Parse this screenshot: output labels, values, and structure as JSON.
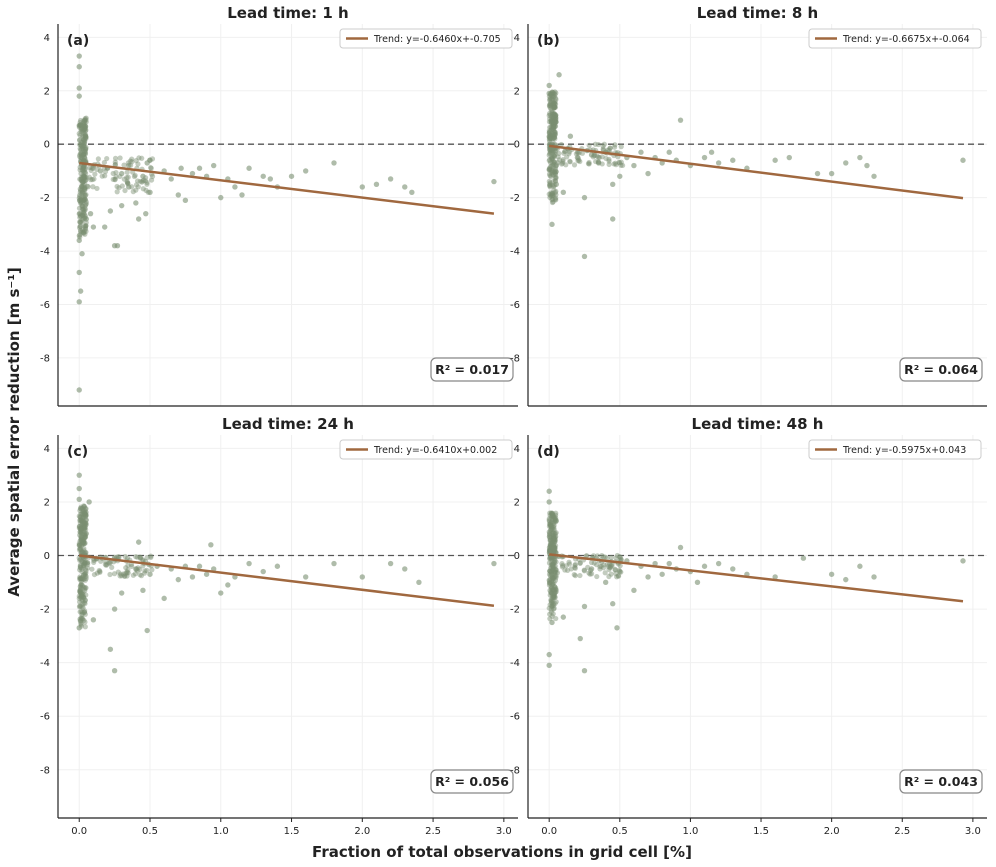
{
  "figure": {
    "ylabel": "Average spatial error reduction [m s⁻¹]",
    "xlabel": "Fraction of total observations in grid cell [%]"
  },
  "colors": {
    "points": "#7a8f72",
    "trend": "#a0683f",
    "zero_line": "#555555"
  },
  "chart_data": [
    {
      "type": "scatter",
      "title": "Lead time: 1 h",
      "letter": "(a)",
      "legend": "Trend: y=-0.6460x+-0.705",
      "r2": "R² = 0.017",
      "slope": -0.646,
      "intercept": -0.705,
      "xlim": [
        -0.15,
        3.1
      ],
      "ylim": [
        -9.8,
        4.5
      ],
      "xticks": [
        0.0,
        0.5,
        1.0,
        1.5,
        2.0,
        2.5,
        3.0
      ],
      "xtick_labels": [
        "0.0",
        "0.5",
        "1.0",
        "1.5",
        "2.0",
        "2.5",
        "3.0"
      ],
      "yticks": [
        4,
        2,
        0,
        -2,
        -4,
        -6,
        -8
      ],
      "ytick_labels": [
        "4",
        "2",
        "0",
        "-2",
        "-4",
        "-6",
        "-8"
      ],
      "points": [
        [
          0,
          3.3
        ],
        [
          0,
          2.9
        ],
        [
          0,
          2.1
        ],
        [
          0,
          1.8
        ],
        [
          0,
          -9.2
        ],
        [
          0,
          -5.9
        ],
        [
          0.01,
          -5.5
        ],
        [
          0,
          -4.8
        ],
        [
          0.02,
          -4.1
        ],
        [
          0,
          -3.6
        ],
        [
          0.03,
          -3.3
        ],
        [
          0.05,
          -2.8
        ],
        [
          0.08,
          -2.6
        ],
        [
          0.1,
          -3.1
        ],
        [
          0.18,
          -3.1
        ],
        [
          0.22,
          -2.5
        ],
        [
          0.25,
          -3.8
        ],
        [
          0.27,
          -3.8
        ],
        [
          0.3,
          -2.3
        ],
        [
          0.35,
          -1.6
        ],
        [
          0.4,
          -2.2
        ],
        [
          0.42,
          -2.8
        ],
        [
          0.45,
          -1.2
        ],
        [
          0.47,
          -2.6
        ],
        [
          0.5,
          -1.8
        ],
        [
          0.15,
          -1.0
        ],
        [
          0.2,
          -0.9
        ],
        [
          0.3,
          -1.1
        ],
        [
          0.35,
          -0.8
        ],
        [
          0.48,
          -0.7
        ],
        [
          0.5,
          -0.6
        ],
        [
          0.6,
          -1.0
        ],
        [
          0.65,
          -1.3
        ],
        [
          0.7,
          -1.9
        ],
        [
          0.72,
          -0.9
        ],
        [
          0.75,
          -2.1
        ],
        [
          0.8,
          -1.1
        ],
        [
          0.85,
          -0.9
        ],
        [
          0.9,
          -1.2
        ],
        [
          0.95,
          -0.8
        ],
        [
          1.0,
          -2.0
        ],
        [
          1.05,
          -1.3
        ],
        [
          1.1,
          -1.6
        ],
        [
          1.15,
          -1.9
        ],
        [
          1.2,
          -0.9
        ],
        [
          1.3,
          -1.2
        ],
        [
          1.35,
          -1.3
        ],
        [
          1.4,
          -1.6
        ],
        [
          1.5,
          -1.2
        ],
        [
          1.6,
          -1.0
        ],
        [
          1.8,
          -0.7
        ],
        [
          2.0,
          -1.6
        ],
        [
          2.1,
          -1.5
        ],
        [
          2.2,
          -1.3
        ],
        [
          2.3,
          -1.6
        ],
        [
          2.35,
          -1.8
        ],
        [
          2.93,
          -1.4
        ]
      ]
    },
    {
      "type": "scatter",
      "title": "Lead time: 8 h",
      "letter": "(b)",
      "legend": "Trend: y=-0.6675x+-0.064",
      "r2": "R² = 0.064",
      "slope": -0.6675,
      "intercept": -0.064,
      "xlim": [
        -0.15,
        3.1
      ],
      "ylim": [
        -9.8,
        4.5
      ],
      "xticks": [
        0.0,
        0.5,
        1.0,
        1.5,
        2.0,
        2.5,
        3.0
      ],
      "xtick_labels": [
        "0.0",
        "0.5",
        "1.0",
        "1.5",
        "2.0",
        "2.5",
        "3.0"
      ],
      "yticks": [
        4,
        2,
        0,
        -2,
        -4,
        -6,
        -8
      ],
      "ytick_labels": [
        "4",
        "2",
        "0",
        "-2",
        "-4",
        "-6",
        "-8"
      ],
      "points": [
        [
          0,
          2.2
        ],
        [
          0,
          1.9
        ],
        [
          0.07,
          2.6
        ],
        [
          0.02,
          -3.0
        ],
        [
          0.25,
          -4.2
        ],
        [
          0.45,
          -2.8
        ],
        [
          0.25,
          -2.0
        ],
        [
          0.1,
          -1.8
        ],
        [
          0.05,
          -1.5
        ],
        [
          0.15,
          0.3
        ],
        [
          0.2,
          -0.5
        ],
        [
          0.3,
          -0.4
        ],
        [
          0.35,
          -0.7
        ],
        [
          0.4,
          -0.3
        ],
        [
          0.45,
          -1.5
        ],
        [
          0.5,
          -1.2
        ],
        [
          0.55,
          -0.5
        ],
        [
          0.6,
          -0.8
        ],
        [
          0.65,
          -0.3
        ],
        [
          0.7,
          -1.1
        ],
        [
          0.75,
          -0.5
        ],
        [
          0.8,
          -0.7
        ],
        [
          0.85,
          -0.3
        ],
        [
          0.9,
          -0.6
        ],
        [
          0.93,
          0.9
        ],
        [
          1.0,
          -0.8
        ],
        [
          1.1,
          -0.5
        ],
        [
          1.15,
          -0.3
        ],
        [
          1.2,
          -0.7
        ],
        [
          1.3,
          -0.6
        ],
        [
          1.4,
          -0.9
        ],
        [
          1.6,
          -0.6
        ],
        [
          1.7,
          -0.5
        ],
        [
          1.9,
          -1.1
        ],
        [
          2.0,
          -1.1
        ],
        [
          2.1,
          -0.7
        ],
        [
          2.2,
          -0.5
        ],
        [
          2.25,
          -0.8
        ],
        [
          2.3,
          -1.2
        ],
        [
          2.93,
          -0.6
        ]
      ]
    },
    {
      "type": "scatter",
      "title": "Lead time: 24 h",
      "letter": "(c)",
      "legend": "Trend: y=-0.6410x+0.002",
      "r2": "R² = 0.056",
      "slope": -0.641,
      "intercept": 0.002,
      "xlim": [
        -0.15,
        3.1
      ],
      "ylim": [
        -9.8,
        4.5
      ],
      "xticks": [
        0.0,
        0.5,
        1.0,
        1.5,
        2.0,
        2.5,
        3.0
      ],
      "xtick_labels": [
        "0.0",
        "0.5",
        "1.0",
        "1.5",
        "2.0",
        "2.5",
        "3.0"
      ],
      "yticks": [
        4,
        2,
        0,
        -2,
        -4,
        -6,
        -8
      ],
      "ytick_labels": [
        "4",
        "2",
        "0",
        "-2",
        "-4",
        "-6",
        "-8"
      ],
      "points": [
        [
          0,
          3.0
        ],
        [
          0,
          2.5
        ],
        [
          0,
          2.1
        ],
        [
          0.07,
          2.0
        ],
        [
          0,
          -2.7
        ],
        [
          0.02,
          -2.2
        ],
        [
          0.1,
          -2.4
        ],
        [
          0.22,
          -3.5
        ],
        [
          0.25,
          -4.3
        ],
        [
          0.48,
          -2.8
        ],
        [
          0.25,
          -2.0
        ],
        [
          0.3,
          -1.4
        ],
        [
          0.4,
          -0.5
        ],
        [
          0.42,
          0.5
        ],
        [
          0.45,
          -1.3
        ],
        [
          0.5,
          -0.7
        ],
        [
          0.55,
          -0.4
        ],
        [
          0.6,
          -1.6
        ],
        [
          0.65,
          -0.5
        ],
        [
          0.7,
          -0.9
        ],
        [
          0.75,
          -0.4
        ],
        [
          0.8,
          -0.8
        ],
        [
          0.85,
          -0.4
        ],
        [
          0.9,
          -0.7
        ],
        [
          0.93,
          0.4
        ],
        [
          0.95,
          -0.5
        ],
        [
          1.0,
          -1.4
        ],
        [
          1.05,
          -1.1
        ],
        [
          1.1,
          -0.8
        ],
        [
          1.2,
          -0.3
        ],
        [
          1.3,
          -0.6
        ],
        [
          1.4,
          -0.4
        ],
        [
          1.6,
          -0.8
        ],
        [
          1.8,
          -0.3
        ],
        [
          2.0,
          -0.8
        ],
        [
          2.2,
          -0.3
        ],
        [
          2.3,
          -0.5
        ],
        [
          2.4,
          -1.0
        ],
        [
          2.93,
          -0.3
        ]
      ]
    },
    {
      "type": "scatter",
      "title": "Lead time: 48 h",
      "letter": "(d)",
      "legend": "Trend: y=-0.5975x+0.043",
      "r2": "R² = 0.043",
      "slope": -0.5975,
      "intercept": 0.043,
      "xlim": [
        -0.15,
        3.1
      ],
      "ylim": [
        -9.8,
        4.5
      ],
      "xticks": [
        0.0,
        0.5,
        1.0,
        1.5,
        2.0,
        2.5,
        3.0
      ],
      "xtick_labels": [
        "0.0",
        "0.5",
        "1.0",
        "1.5",
        "2.0",
        "2.5",
        "3.0"
      ],
      "yticks": [
        4,
        2,
        0,
        -2,
        -4,
        -6,
        -8
      ],
      "ytick_labels": [
        "4",
        "2",
        "0",
        "-2",
        "-4",
        "-6",
        "-8"
      ],
      "points": [
        [
          0,
          2.4
        ],
        [
          0,
          2.0
        ],
        [
          0.05,
          1.3
        ],
        [
          0,
          -3.7
        ],
        [
          0,
          -4.1
        ],
        [
          0.02,
          -2.5
        ],
        [
          0.1,
          -2.3
        ],
        [
          0.22,
          -3.1
        ],
        [
          0.25,
          -4.3
        ],
        [
          0.48,
          -2.7
        ],
        [
          0.25,
          -1.9
        ],
        [
          0.3,
          -0.5
        ],
        [
          0.4,
          -1.0
        ],
        [
          0.45,
          -1.8
        ],
        [
          0.5,
          -0.6
        ],
        [
          0.55,
          -0.2
        ],
        [
          0.6,
          -1.3
        ],
        [
          0.65,
          -0.4
        ],
        [
          0.7,
          -0.8
        ],
        [
          0.75,
          -0.3
        ],
        [
          0.8,
          -0.7
        ],
        [
          0.85,
          -0.3
        ],
        [
          0.9,
          -0.5
        ],
        [
          0.93,
          0.3
        ],
        [
          1.0,
          -0.6
        ],
        [
          1.05,
          -1.0
        ],
        [
          1.1,
          -0.4
        ],
        [
          1.2,
          -0.3
        ],
        [
          1.3,
          -0.5
        ],
        [
          1.4,
          -0.7
        ],
        [
          1.6,
          -0.8
        ],
        [
          1.8,
          -0.1
        ],
        [
          2.0,
          -0.7
        ],
        [
          2.1,
          -0.9
        ],
        [
          2.2,
          -0.4
        ],
        [
          2.3,
          -0.8
        ],
        [
          2.93,
          -0.2
        ]
      ]
    }
  ]
}
